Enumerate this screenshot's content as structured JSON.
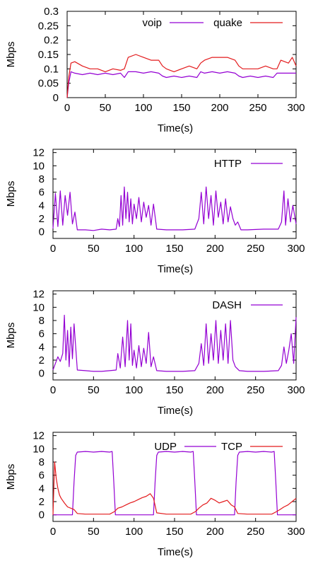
{
  "chart_data": [
    {
      "type": "line",
      "title": "",
      "xlabel": "Time(s)",
      "ylabel": "Mbps",
      "xlim": [
        0,
        300
      ],
      "ylim": [
        0,
        0.3
      ],
      "xticks": [
        "0",
        "50",
        "100",
        "150",
        "200",
        "250",
        "300"
      ],
      "yticks": [
        "0",
        "0.05",
        "0.1",
        "0.15",
        "0.2",
        "0.25",
        "0.3"
      ],
      "legend_position": "top-center",
      "grid": false,
      "series": [
        {
          "name": "voip",
          "color": "#9400d3",
          "x": [
            0,
            2,
            5,
            10,
            20,
            30,
            40,
            50,
            60,
            70,
            75,
            80,
            90,
            100,
            110,
            120,
            125,
            130,
            140,
            150,
            160,
            170,
            175,
            180,
            190,
            200,
            210,
            220,
            225,
            230,
            240,
            250,
            260,
            270,
            275,
            280,
            290,
            300
          ],
          "y": [
            0.0,
            0.05,
            0.09,
            0.085,
            0.08,
            0.085,
            0.08,
            0.085,
            0.08,
            0.085,
            0.07,
            0.09,
            0.09,
            0.085,
            0.09,
            0.085,
            0.075,
            0.07,
            0.075,
            0.07,
            0.075,
            0.07,
            0.09,
            0.085,
            0.09,
            0.085,
            0.09,
            0.085,
            0.075,
            0.07,
            0.075,
            0.07,
            0.075,
            0.07,
            0.085,
            0.085,
            0.085,
            0.085
          ]
        },
        {
          "name": "quake",
          "color": "#e31a1c",
          "x": [
            0,
            2,
            5,
            10,
            20,
            30,
            40,
            50,
            60,
            70,
            75,
            80,
            90,
            100,
            110,
            120,
            125,
            130,
            140,
            150,
            160,
            170,
            175,
            180,
            190,
            200,
            210,
            220,
            225,
            230,
            240,
            250,
            260,
            270,
            275,
            280,
            290,
            295,
            300
          ],
          "y": [
            0.0,
            0.07,
            0.12,
            0.125,
            0.11,
            0.1,
            0.1,
            0.09,
            0.1,
            0.095,
            0.1,
            0.14,
            0.15,
            0.14,
            0.13,
            0.13,
            0.11,
            0.1,
            0.09,
            0.1,
            0.11,
            0.1,
            0.12,
            0.13,
            0.14,
            0.14,
            0.14,
            0.13,
            0.11,
            0.1,
            0.1,
            0.1,
            0.11,
            0.1,
            0.1,
            0.13,
            0.12,
            0.14,
            0.11
          ]
        }
      ]
    },
    {
      "type": "line",
      "title": "",
      "xlabel": "Time(s)",
      "ylabel": "Mbps",
      "xlim": [
        0,
        300
      ],
      "ylim": [
        -1,
        12.5
      ],
      "xticks": [
        "0",
        "50",
        "100",
        "150",
        "200",
        "250",
        "300"
      ],
      "yticks": [
        "0",
        "2",
        "4",
        "6",
        "8",
        "10",
        "12"
      ],
      "legend_position": "top-right",
      "grid": false,
      "series": [
        {
          "name": "HTTP",
          "color": "#9400d3",
          "x": [
            0,
            3,
            6,
            9,
            12,
            15,
            18,
            21,
            24,
            27,
            30,
            40,
            50,
            60,
            70,
            78,
            80,
            82,
            84,
            86,
            88,
            90,
            92,
            94,
            96,
            98,
            100,
            103,
            106,
            109,
            112,
            115,
            118,
            121,
            124,
            128,
            140,
            160,
            175,
            180,
            183,
            186,
            189,
            192,
            195,
            198,
            201,
            204,
            207,
            210,
            213,
            216,
            219,
            222,
            225,
            228,
            232,
            240,
            260,
            278,
            282,
            285,
            287,
            290,
            293,
            296,
            300
          ],
          "y": [
            0.5,
            5.8,
            0.8,
            6.2,
            1.0,
            5.5,
            2.5,
            6.0,
            1.2,
            3.0,
            0.3,
            0.3,
            0.2,
            0.4,
            0.3,
            0.4,
            2.0,
            0.8,
            5.5,
            1.0,
            6.8,
            2.0,
            6.0,
            1.5,
            5.0,
            1.2,
            4.2,
            2.0,
            5.2,
            1.5,
            4.5,
            2.2,
            4.0,
            1.0,
            4.2,
            0.4,
            0.3,
            0.3,
            0.4,
            2.0,
            6.0,
            1.2,
            6.8,
            2.0,
            5.5,
            1.0,
            6.2,
            2.2,
            4.5,
            1.2,
            5.0,
            1.5,
            3.8,
            2.0,
            1.0,
            1.5,
            0.3,
            0.3,
            0.4,
            0.4,
            1.5,
            6.2,
            1.0,
            5.0,
            1.5,
            4.0,
            1.2
          ]
        }
      ]
    },
    {
      "type": "line",
      "title": "",
      "xlabel": "Time(s)",
      "ylabel": "Mbps",
      "xlim": [
        0,
        300
      ],
      "ylim": [
        -1,
        12.5
      ],
      "xticks": [
        "0",
        "50",
        "100",
        "150",
        "200",
        "250",
        "300"
      ],
      "yticks": [
        "0",
        "2",
        "4",
        "6",
        "8",
        "10",
        "12"
      ],
      "legend_position": "top-right",
      "grid": false,
      "series": [
        {
          "name": "DASH",
          "color": "#9400d3",
          "x": [
            0,
            3,
            6,
            9,
            12,
            14,
            16,
            18,
            20,
            22,
            24,
            26,
            30,
            40,
            50,
            60,
            70,
            78,
            80,
            83,
            86,
            89,
            92,
            94,
            96,
            98,
            100,
            103,
            106,
            109,
            112,
            115,
            118,
            121,
            124,
            128,
            140,
            160,
            175,
            180,
            183,
            186,
            189,
            192,
            195,
            198,
            201,
            204,
            207,
            210,
            213,
            216,
            219,
            222,
            225,
            230,
            240,
            260,
            278,
            282,
            285,
            288,
            291,
            294,
            297,
            300
          ],
          "y": [
            0.5,
            1.5,
            2.5,
            1.8,
            3.0,
            8.8,
            2.0,
            6.5,
            1.0,
            7.0,
            2.2,
            7.5,
            0.5,
            0.4,
            0.3,
            0.3,
            0.4,
            0.5,
            3.0,
            0.8,
            5.5,
            1.0,
            8.0,
            2.0,
            7.5,
            1.2,
            3.5,
            0.8,
            4.2,
            1.0,
            3.8,
            1.5,
            6.2,
            1.0,
            2.5,
            0.4,
            0.3,
            0.3,
            0.4,
            1.5,
            4.5,
            1.2,
            7.5,
            1.5,
            6.0,
            2.0,
            8.0,
            1.5,
            6.5,
            2.0,
            7.5,
            1.5,
            8.0,
            2.0,
            1.0,
            0.4,
            0.3,
            0.3,
            0.4,
            1.2,
            4.0,
            1.5,
            3.5,
            6.0,
            1.5,
            8.5
          ]
        }
      ]
    },
    {
      "type": "line",
      "title": "",
      "xlabel": "Time(s)",
      "ylabel": "Mbps",
      "xlim": [
        0,
        300
      ],
      "ylim": [
        -1,
        12.5
      ],
      "xticks": [
        "0",
        "50",
        "100",
        "150",
        "200",
        "250",
        "300"
      ],
      "yticks": [
        "0",
        "2",
        "4",
        "6",
        "8",
        "10",
        "12"
      ],
      "legend_position": "top-center",
      "grid": false,
      "series": [
        {
          "name": "UDP",
          "color": "#9400d3",
          "x": [
            0,
            24,
            26,
            28,
            30,
            40,
            50,
            60,
            70,
            73,
            75,
            77,
            100,
            124,
            126,
            128,
            130,
            140,
            150,
            160,
            170,
            173,
            175,
            177,
            200,
            224,
            226,
            228,
            230,
            240,
            250,
            260,
            270,
            273,
            275,
            277,
            300
          ],
          "y": [
            0,
            0,
            5.0,
            9.0,
            9.5,
            9.6,
            9.5,
            9.6,
            9.5,
            9.6,
            5.0,
            0,
            0,
            0,
            5.0,
            9.0,
            9.5,
            9.6,
            9.5,
            9.6,
            9.5,
            9.6,
            5.0,
            0,
            0,
            0,
            5.0,
            9.0,
            9.5,
            9.6,
            9.5,
            9.6,
            9.5,
            9.6,
            5.0,
            0,
            0
          ]
        },
        {
          "name": "TCP",
          "color": "#e31a1c",
          "x": [
            0,
            2,
            4,
            6,
            8,
            10,
            14,
            18,
            22,
            26,
            30,
            40,
            50,
            60,
            70,
            76,
            80,
            85,
            90,
            95,
            100,
            105,
            110,
            115,
            120,
            124,
            128,
            140,
            150,
            160,
            170,
            176,
            180,
            185,
            190,
            195,
            200,
            205,
            210,
            215,
            220,
            224,
            228,
            240,
            250,
            260,
            270,
            276,
            280,
            285,
            290,
            295,
            300
          ],
          "y": [
            0,
            8.0,
            5.5,
            4.0,
            3.0,
            2.5,
            1.8,
            1.2,
            1.0,
            0.8,
            0.2,
            0.1,
            0.1,
            0.1,
            0.1,
            0.5,
            1.0,
            1.2,
            1.5,
            1.8,
            2.0,
            2.3,
            2.6,
            2.8,
            3.2,
            2.5,
            0.3,
            0.1,
            0.1,
            0.1,
            0.1,
            0.5,
            1.0,
            1.5,
            1.8,
            2.5,
            2.2,
            1.8,
            2.0,
            2.2,
            1.5,
            1.2,
            0.2,
            0.1,
            0.1,
            0.1,
            0.1,
            0.5,
            0.8,
            1.2,
            1.5,
            2.0,
            2.5
          ]
        }
      ]
    }
  ]
}
